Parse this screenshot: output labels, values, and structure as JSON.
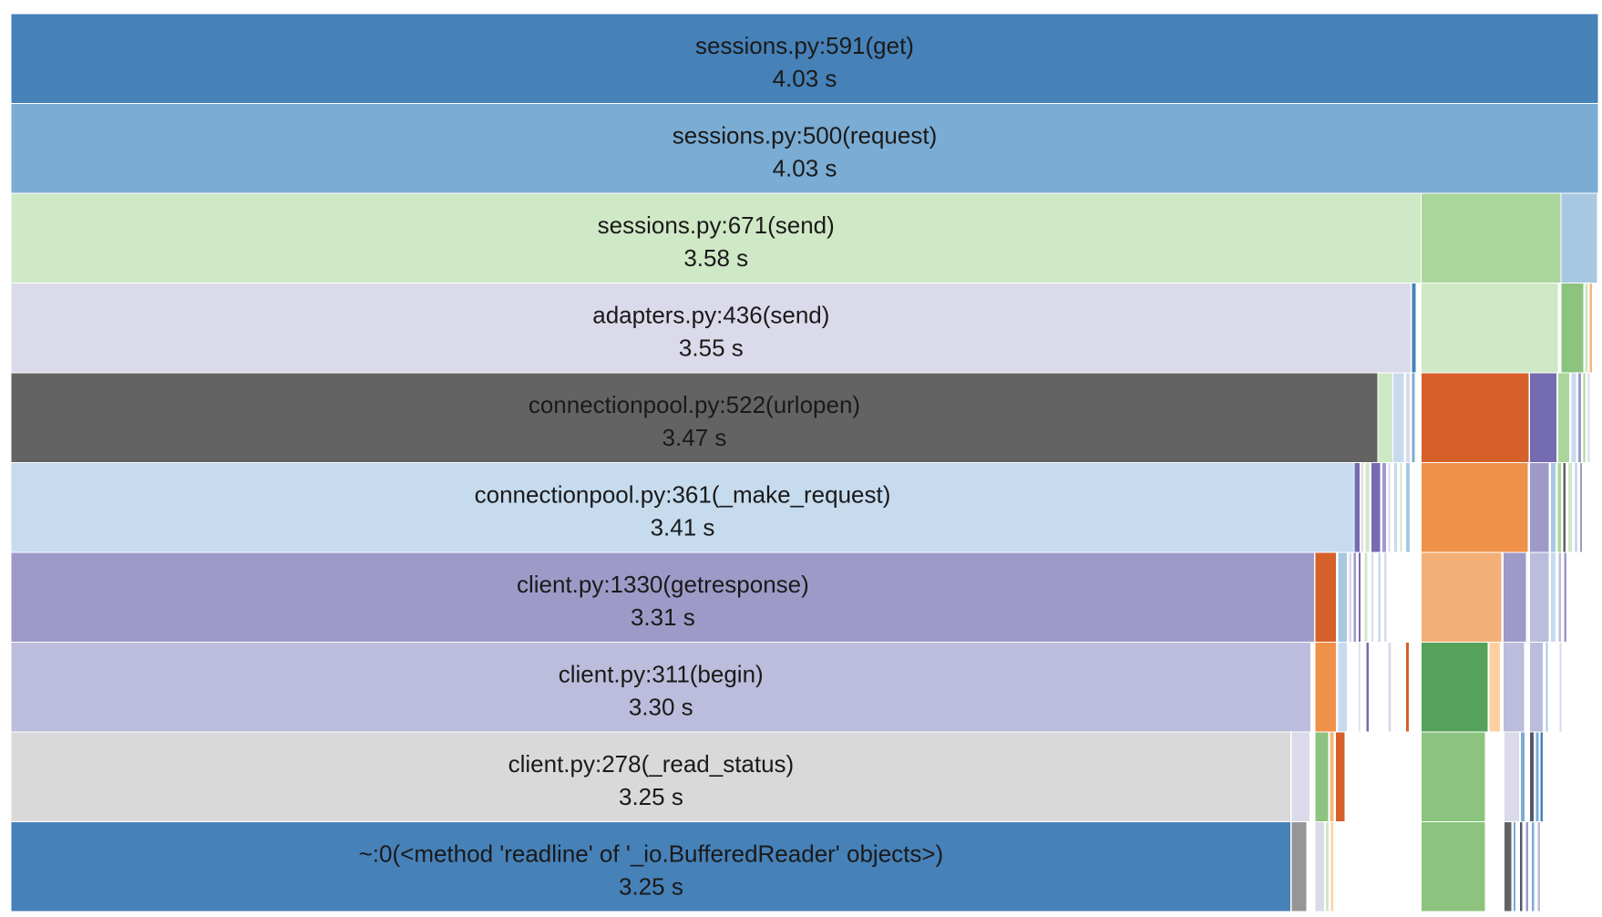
{
  "chart_data": {
    "type": "icicle",
    "unit": "s",
    "total_time": 4.03,
    "depths": 10,
    "frames": [
      {
        "depth": 0,
        "start": 0.0,
        "time": 4.03,
        "color": "#4681b8",
        "name": "sessions.py:591(get)",
        "time_label": "4.03 s"
      },
      {
        "depth": 1,
        "start": 0.0,
        "time": 4.03,
        "color": "#7bacd3",
        "name": "sessions.py:500(request)",
        "time_label": "4.03 s"
      },
      {
        "depth": 2,
        "start": 0.0,
        "time": 3.58,
        "color": "#cfe8c5",
        "name": "sessions.py:671(send)",
        "time_label": "3.58 s"
      },
      {
        "depth": 2,
        "start": 3.58,
        "time": 0.355,
        "color": "#abd69b"
      },
      {
        "depth": 2,
        "start": 3.935,
        "time": 0.093,
        "color": "#a8c8e2"
      },
      {
        "depth": 3,
        "start": 0.0,
        "time": 3.555,
        "color": "#dadaea",
        "name": "adapters.py:436(send)",
        "time_label": "3.55 s"
      },
      {
        "depth": 3,
        "start": 3.555,
        "time": 0.013,
        "color": "#4681b8"
      },
      {
        "depth": 3,
        "start": 3.58,
        "time": 0.348,
        "color": "#cfe8c5"
      },
      {
        "depth": 3,
        "start": 3.935,
        "time": 0.058,
        "color": "#8cc47f"
      },
      {
        "depth": 3,
        "start": 3.995,
        "time": 0.01,
        "color": "#cfe8c5"
      },
      {
        "depth": 3,
        "start": 4.007,
        "time": 0.008,
        "color": "#f4b57b"
      },
      {
        "depth": 4,
        "start": 0.0,
        "time": 3.47,
        "color": "#636363",
        "name": "connectionpool.py:522(urlopen)",
        "time_label": "3.47 s"
      },
      {
        "depth": 4,
        "start": 3.47,
        "time": 0.038,
        "color": "#cfe8c5"
      },
      {
        "depth": 4,
        "start": 3.508,
        "time": 0.03,
        "color": "#c6dbee"
      },
      {
        "depth": 4,
        "start": 3.54,
        "time": 0.012,
        "color": "#dadaea"
      },
      {
        "depth": 4,
        "start": 3.555,
        "time": 0.01,
        "color": "#7bacd3"
      },
      {
        "depth": 4,
        "start": 3.58,
        "time": 0.275,
        "color": "#d6602a"
      },
      {
        "depth": 4,
        "start": 3.855,
        "time": 0.07,
        "color": "#756bb1"
      },
      {
        "depth": 4,
        "start": 3.927,
        "time": 0.03,
        "color": "#abd69b"
      },
      {
        "depth": 4,
        "start": 3.96,
        "time": 0.015,
        "color": "#c6dbee"
      },
      {
        "depth": 4,
        "start": 3.978,
        "time": 0.01,
        "color": "#9e9ac8"
      },
      {
        "depth": 4,
        "start": 3.99,
        "time": 0.008,
        "color": "#abd69b"
      },
      {
        "depth": 4,
        "start": 4.002,
        "time": 0.007,
        "color": "#dadaea"
      },
      {
        "depth": 5,
        "start": 0.0,
        "time": 3.41,
        "color": "#c6dbee",
        "name": "connectionpool.py:361(_make_request)",
        "time_label": "3.41 s"
      },
      {
        "depth": 5,
        "start": 3.41,
        "time": 0.015,
        "color": "#756bb1"
      },
      {
        "depth": 5,
        "start": 3.427,
        "time": 0.008,
        "color": "#dadaea"
      },
      {
        "depth": 5,
        "start": 3.437,
        "time": 0.012,
        "color": "#cfe8c5"
      },
      {
        "depth": 5,
        "start": 3.452,
        "time": 0.025,
        "color": "#756bb1"
      },
      {
        "depth": 5,
        "start": 3.48,
        "time": 0.012,
        "color": "#9e9ac8"
      },
      {
        "depth": 5,
        "start": 3.495,
        "time": 0.008,
        "color": "#dadaea"
      },
      {
        "depth": 5,
        "start": 3.51,
        "time": 0.01,
        "color": "#c6dbee"
      },
      {
        "depth": 5,
        "start": 3.525,
        "time": 0.008,
        "color": "#cfe8c5"
      },
      {
        "depth": 5,
        "start": 3.54,
        "time": 0.012,
        "color": "#a8c8e2"
      },
      {
        "depth": 5,
        "start": 3.58,
        "time": 0.272,
        "color": "#ef9149"
      },
      {
        "depth": 5,
        "start": 3.855,
        "time": 0.05,
        "color": "#9e9ac8"
      },
      {
        "depth": 5,
        "start": 3.908,
        "time": 0.015,
        "color": "#a8c8e2"
      },
      {
        "depth": 5,
        "start": 3.926,
        "time": 0.01,
        "color": "#abd69b"
      },
      {
        "depth": 5,
        "start": 3.94,
        "time": 0.008,
        "color": "#636363"
      },
      {
        "depth": 5,
        "start": 3.952,
        "time": 0.012,
        "color": "#cfe8c5"
      },
      {
        "depth": 5,
        "start": 3.968,
        "time": 0.01,
        "color": "#c6dbee"
      },
      {
        "depth": 5,
        "start": 3.982,
        "time": 0.008,
        "color": "#9e9ac8"
      },
      {
        "depth": 6,
        "start": 0.0,
        "time": 3.31,
        "color": "#9e9ac8",
        "name": "client.py:1330(getresponse)",
        "time_label": "3.31 s"
      },
      {
        "depth": 6,
        "start": 3.31,
        "time": 0.055,
        "color": "#d6602a"
      },
      {
        "depth": 6,
        "start": 3.368,
        "time": 0.025,
        "color": "#a8c8e2"
      },
      {
        "depth": 6,
        "start": 3.396,
        "time": 0.008,
        "color": "#dadaea"
      },
      {
        "depth": 6,
        "start": 3.408,
        "time": 0.008,
        "color": "#9e9ac8"
      },
      {
        "depth": 6,
        "start": 3.42,
        "time": 0.008,
        "color": "#756bb1"
      },
      {
        "depth": 6,
        "start": 3.435,
        "time": 0.01,
        "color": "#cfe8c5"
      },
      {
        "depth": 6,
        "start": 3.452,
        "time": 0.008,
        "color": "#dadaea"
      },
      {
        "depth": 6,
        "start": 3.47,
        "time": 0.008,
        "color": "#c6dbee"
      },
      {
        "depth": 6,
        "start": 3.485,
        "time": 0.008,
        "color": "#dadaea"
      },
      {
        "depth": 6,
        "start": 3.58,
        "time": 0.205,
        "color": "#f2b077"
      },
      {
        "depth": 6,
        "start": 3.788,
        "time": 0.06,
        "color": "#9e9ac8"
      },
      {
        "depth": 6,
        "start": 3.855,
        "time": 0.05,
        "color": "#bcbddc"
      },
      {
        "depth": 6,
        "start": 3.908,
        "time": 0.015,
        "color": "#c6dbee"
      },
      {
        "depth": 6,
        "start": 3.928,
        "time": 0.008,
        "color": "#bcbddc"
      },
      {
        "depth": 6,
        "start": 3.942,
        "time": 0.008,
        "color": "#9e9ac8"
      },
      {
        "depth": 7,
        "start": 0.0,
        "time": 3.3,
        "color": "#bcbddc",
        "name": "client.py:311(begin)",
        "time_label": "3.30 s"
      },
      {
        "depth": 7,
        "start": 3.31,
        "time": 0.055,
        "color": "#ef9149"
      },
      {
        "depth": 7,
        "start": 3.368,
        "time": 0.025,
        "color": "#c6dbee"
      },
      {
        "depth": 7,
        "start": 3.42,
        "time": 0.006,
        "color": "#dadaea"
      },
      {
        "depth": 7,
        "start": 3.44,
        "time": 0.008,
        "color": "#756bb1"
      },
      {
        "depth": 7,
        "start": 3.495,
        "time": 0.01,
        "color": "#dadaea"
      },
      {
        "depth": 7,
        "start": 3.54,
        "time": 0.01,
        "color": "#d6602a"
      },
      {
        "depth": 7,
        "start": 3.58,
        "time": 0.17,
        "color": "#57a25a"
      },
      {
        "depth": 7,
        "start": 3.752,
        "time": 0.03,
        "color": "#fdd0a2"
      },
      {
        "depth": 7,
        "start": 3.788,
        "time": 0.055,
        "color": "#bcbddc"
      },
      {
        "depth": 7,
        "start": 3.855,
        "time": 0.035,
        "color": "#bcbddc"
      },
      {
        "depth": 7,
        "start": 3.895,
        "time": 0.008,
        "color": "#a8c8e2"
      },
      {
        "depth": 7,
        "start": 3.93,
        "time": 0.008,
        "color": "#dadaea"
      },
      {
        "depth": 8,
        "start": 0.0,
        "time": 3.25,
        "color": "#d9d9d9",
        "name": "client.py:278(_read_status)",
        "time_label": "3.25 s"
      },
      {
        "depth": 8,
        "start": 3.25,
        "time": 0.048,
        "color": "#dadaea"
      },
      {
        "depth": 8,
        "start": 3.31,
        "time": 0.035,
        "color": "#8cc47f"
      },
      {
        "depth": 8,
        "start": 3.347,
        "time": 0.012,
        "color": "#f4b57b"
      },
      {
        "depth": 8,
        "start": 3.362,
        "time": 0.025,
        "color": "#d6602a"
      },
      {
        "depth": 8,
        "start": 3.58,
        "time": 0.163,
        "color": "#8cc47f"
      },
      {
        "depth": 8,
        "start": 3.79,
        "time": 0.04,
        "color": "#dadaea"
      },
      {
        "depth": 8,
        "start": 3.832,
        "time": 0.012,
        "color": "#7bacd3"
      },
      {
        "depth": 8,
        "start": 3.855,
        "time": 0.012,
        "color": "#4f5a6e"
      },
      {
        "depth": 8,
        "start": 3.87,
        "time": 0.01,
        "color": "#7bacd3"
      },
      {
        "depth": 8,
        "start": 3.882,
        "time": 0.008,
        "color": "#4681b8"
      },
      {
        "depth": 9,
        "start": 0.0,
        "time": 3.25,
        "color": "#4681b8",
        "name": "~:0(<method 'readline' of '_io.BufferedReader' objects>)",
        "time_label": "3.25 s"
      },
      {
        "depth": 9,
        "start": 3.25,
        "time": 0.04,
        "color": "#969696"
      },
      {
        "depth": 9,
        "start": 3.31,
        "time": 0.025,
        "color": "#dadaea"
      },
      {
        "depth": 9,
        "start": 3.337,
        "time": 0.01,
        "color": "#cfe8c5"
      },
      {
        "depth": 9,
        "start": 3.35,
        "time": 0.008,
        "color": "#fdd0a2"
      },
      {
        "depth": 9,
        "start": 3.58,
        "time": 0.163,
        "color": "#8cc47f"
      },
      {
        "depth": 9,
        "start": 3.79,
        "time": 0.02,
        "color": "#636363"
      },
      {
        "depth": 9,
        "start": 3.813,
        "time": 0.008,
        "color": "#7bacd3"
      },
      {
        "depth": 9,
        "start": 3.83,
        "time": 0.008,
        "color": "#4f5a6e"
      },
      {
        "depth": 9,
        "start": 3.845,
        "time": 0.008,
        "color": "#9e9ac8"
      },
      {
        "depth": 9,
        "start": 3.86,
        "time": 0.008,
        "color": "#7bacd3"
      },
      {
        "depth": 9,
        "start": 3.875,
        "time": 0.008,
        "color": "#bcbddc"
      }
    ]
  }
}
